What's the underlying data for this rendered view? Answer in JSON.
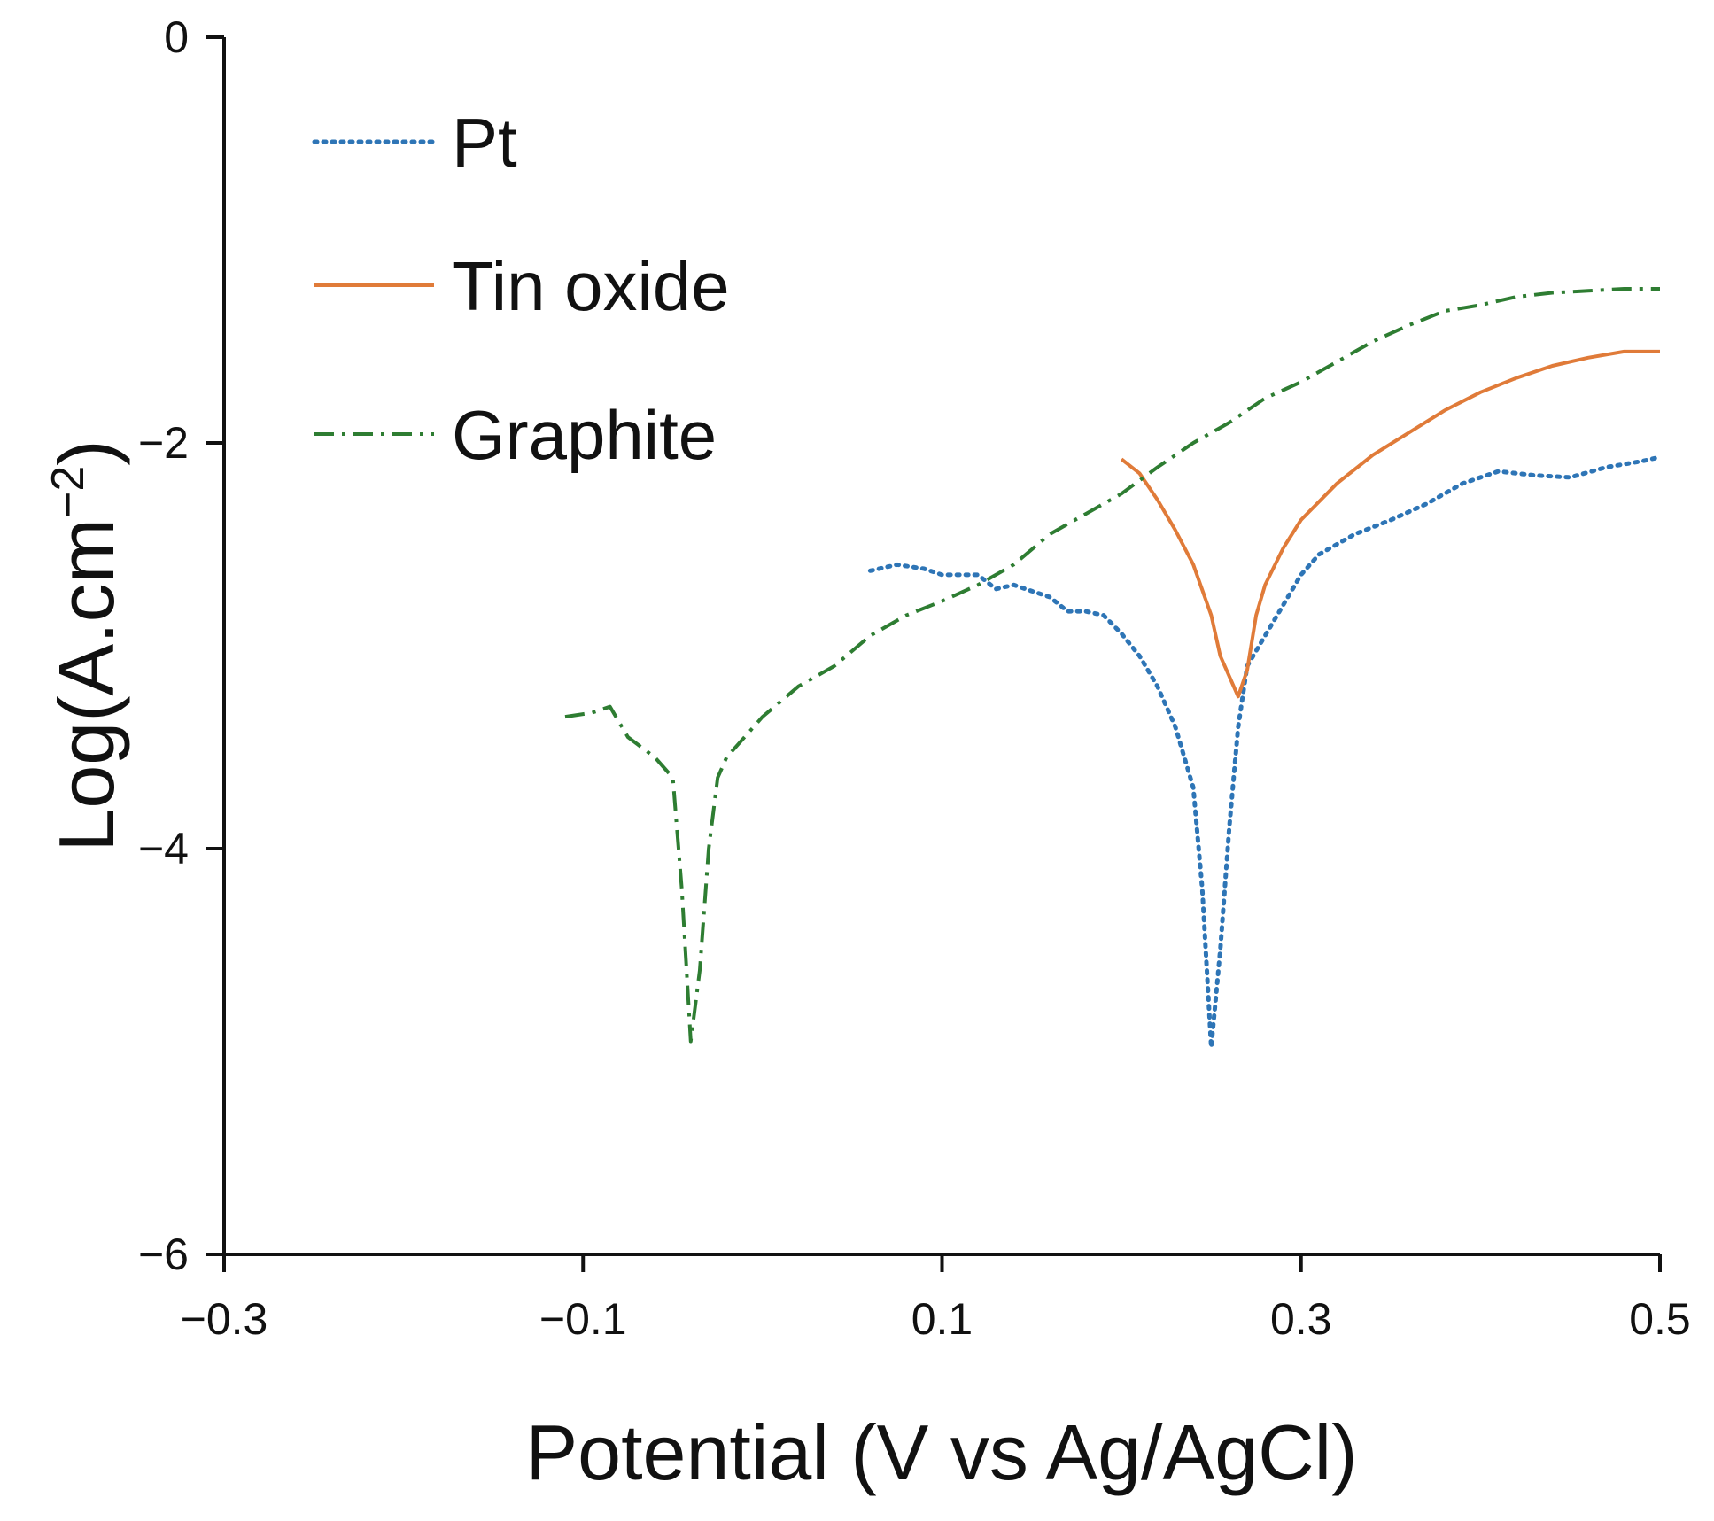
{
  "chart_data": {
    "type": "line",
    "title": "",
    "xlabel": "Potential (V vs Ag/AgCl)",
    "ylabel": "Log(A.cm",
    "ylabel_superscript": "−2",
    "ylabel_close": ")",
    "xlim": [
      -0.3,
      0.5
    ],
    "ylim": [
      -6,
      0
    ],
    "grid": false,
    "legend_position": "top-left",
    "xticks": [
      {
        "value": -0.3,
        "label": "−0.3"
      },
      {
        "value": -0.1,
        "label": "−0.1"
      },
      {
        "value": 0.1,
        "label": "0.1"
      },
      {
        "value": 0.3,
        "label": "0.3"
      },
      {
        "value": 0.5,
        "label": "0.5"
      }
    ],
    "yticks": [
      {
        "value": 0,
        "label": "0"
      },
      {
        "value": -2,
        "label": "−2"
      },
      {
        "value": -4,
        "label": "−4"
      },
      {
        "value": -6,
        "label": "−6"
      }
    ],
    "series": [
      {
        "name": "Pt",
        "color": "#2e75b6",
        "style": "dotted",
        "x": [
          0.06,
          0.075,
          0.09,
          0.1,
          0.11,
          0.12,
          0.13,
          0.14,
          0.15,
          0.16,
          0.17,
          0.18,
          0.19,
          0.2,
          0.21,
          0.22,
          0.23,
          0.24,
          0.245,
          0.25,
          0.255,
          0.26,
          0.265,
          0.27,
          0.28,
          0.29,
          0.3,
          0.31,
          0.33,
          0.35,
          0.37,
          0.39,
          0.41,
          0.43,
          0.45,
          0.47,
          0.49,
          0.5
        ],
        "y": [
          -2.63,
          -2.6,
          -2.62,
          -2.65,
          -2.65,
          -2.65,
          -2.72,
          -2.7,
          -2.73,
          -2.76,
          -2.83,
          -2.83,
          -2.85,
          -2.94,
          -3.05,
          -3.2,
          -3.4,
          -3.7,
          -4.2,
          -4.98,
          -4.5,
          -3.9,
          -3.4,
          -3.1,
          -2.95,
          -2.8,
          -2.65,
          -2.55,
          -2.45,
          -2.38,
          -2.3,
          -2.2,
          -2.14,
          -2.16,
          -2.17,
          -2.12,
          -2.09,
          -2.07
        ]
      },
      {
        "name": "Tin oxide",
        "color": "#e07b39",
        "style": "solid",
        "x": [
          0.2,
          0.21,
          0.22,
          0.23,
          0.24,
          0.25,
          0.255,
          0.26,
          0.265,
          0.27,
          0.275,
          0.28,
          0.29,
          0.3,
          0.32,
          0.34,
          0.36,
          0.38,
          0.4,
          0.42,
          0.44,
          0.46,
          0.48,
          0.5
        ],
        "y": [
          -2.08,
          -2.15,
          -2.28,
          -2.43,
          -2.6,
          -2.85,
          -3.05,
          -3.15,
          -3.25,
          -3.12,
          -2.85,
          -2.7,
          -2.52,
          -2.38,
          -2.2,
          -2.06,
          -1.95,
          -1.84,
          -1.75,
          -1.68,
          -1.62,
          -1.58,
          -1.55,
          -1.55
        ]
      },
      {
        "name": "Graphite",
        "color": "#2e7d32",
        "style": "dashdot",
        "x": [
          -0.11,
          -0.095,
          -0.085,
          -0.075,
          -0.06,
          -0.05,
          -0.045,
          -0.04,
          -0.035,
          -0.03,
          -0.025,
          -0.02,
          -0.01,
          0.0,
          0.02,
          0.04,
          0.06,
          0.08,
          0.1,
          0.12,
          0.14,
          0.16,
          0.18,
          0.2,
          0.22,
          0.24,
          0.26,
          0.28,
          0.3,
          0.32,
          0.34,
          0.36,
          0.38,
          0.4,
          0.42,
          0.44,
          0.46,
          0.48,
          0.5
        ],
        "y": [
          -3.35,
          -3.33,
          -3.3,
          -3.45,
          -3.55,
          -3.65,
          -4.2,
          -4.95,
          -4.6,
          -4.0,
          -3.65,
          -3.55,
          -3.45,
          -3.35,
          -3.2,
          -3.1,
          -2.95,
          -2.85,
          -2.78,
          -2.7,
          -2.6,
          -2.45,
          -2.35,
          -2.25,
          -2.12,
          -2.0,
          -1.9,
          -1.78,
          -1.7,
          -1.6,
          -1.5,
          -1.42,
          -1.35,
          -1.32,
          -1.28,
          -1.26,
          -1.25,
          -1.24,
          -1.24
        ]
      }
    ]
  }
}
